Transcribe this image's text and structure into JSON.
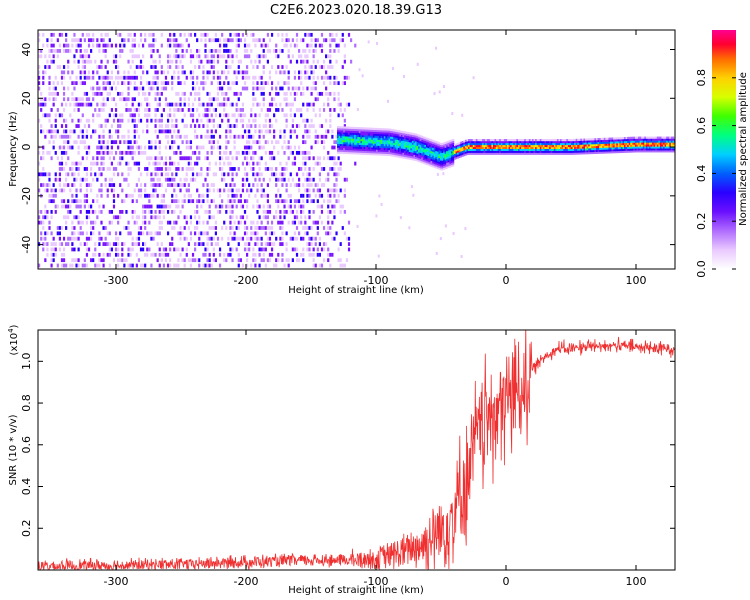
{
  "page": {
    "title": "C2E6.2023.020.18.39.G13"
  },
  "chart_data": [
    {
      "type": "heatmap",
      "title": "C2E6.2023.020.18.39.G13",
      "xlabel": "Height of straight line (km)",
      "ylabel": "Frequency (Hz)",
      "xlim": [
        -360,
        130
      ],
      "ylim": [
        -50,
        48
      ],
      "xticks": [
        -300,
        -200,
        -100,
        0,
        100
      ],
      "yticks": [
        -40,
        -20,
        0,
        20,
        40
      ],
      "colorbar": {
        "label": "Normalized spectral amplitude",
        "range": [
          0.0,
          1.0
        ],
        "ticks": [
          0.0,
          0.2,
          0.4,
          0.6,
          0.8
        ],
        "colormap": [
          "#ffffff",
          "#e9c9ff",
          "#b06cff",
          "#7a14ff",
          "#2a00ff",
          "#0060ff",
          "#00d0ff",
          "#00ff80",
          "#40ff00",
          "#d8ff00",
          "#ffd000",
          "#ff6a00",
          "#ff0030",
          "#ff0090"
        ]
      },
      "regions": [
        {
          "description": "broadband speckled noise",
          "x_range": [
            -360,
            -115
          ],
          "y_range": [
            -50,
            48
          ],
          "amplitude": 0.22
        },
        {
          "description": "signal band",
          "x_range": [
            -130,
            130
          ],
          "center_hz": [
            [
              -130,
              3
            ],
            [
              -90,
              2
            ],
            [
              -70,
              0
            ],
            [
              -50,
              -4
            ],
            [
              -40,
              -2
            ],
            [
              -30,
              0
            ],
            [
              -10,
              0
            ],
            [
              0,
              0
            ],
            [
              50,
              0
            ],
            [
              100,
              1
            ],
            [
              130,
              1
            ]
          ],
          "peak_amplitude": 0.95
        }
      ]
    },
    {
      "type": "line",
      "xlabel": "Height of straight line (km)",
      "ylabel": "SNR (10 * v/v)",
      "y_multiplier_label": "(x10",
      "y_multiplier_exponent": "4",
      "y_multiplier_suffix": ")",
      "xlim": [
        -360,
        130
      ],
      "ylim": [
        0.0,
        1.15
      ],
      "xticks": [
        -300,
        -200,
        -100,
        0,
        100
      ],
      "yticks": [
        0.2,
        0.4,
        0.6,
        0.8,
        1.0
      ],
      "color": "#f03030",
      "series_profile": [
        [
          -360,
          0.02
        ],
        [
          -300,
          0.025
        ],
        [
          -250,
          0.03
        ],
        [
          -200,
          0.04
        ],
        [
          -150,
          0.05
        ],
        [
          -120,
          0.05
        ],
        [
          -100,
          0.06
        ],
        [
          -80,
          0.09
        ],
        [
          -70,
          0.12
        ],
        [
          -60,
          0.15
        ],
        [
          -50,
          0.2
        ],
        [
          -40,
          0.3
        ],
        [
          -30,
          0.45
        ],
        [
          -25,
          0.6
        ],
        [
          -20,
          0.7
        ],
        [
          -10,
          0.78
        ],
        [
          0,
          0.82
        ],
        [
          10,
          0.9
        ],
        [
          20,
          0.96
        ],
        [
          30,
          1.03
        ],
        [
          40,
          1.06
        ],
        [
          60,
          1.07
        ],
        [
          80,
          1.08
        ],
        [
          100,
          1.07
        ],
        [
          130,
          1.06
        ]
      ]
    }
  ]
}
